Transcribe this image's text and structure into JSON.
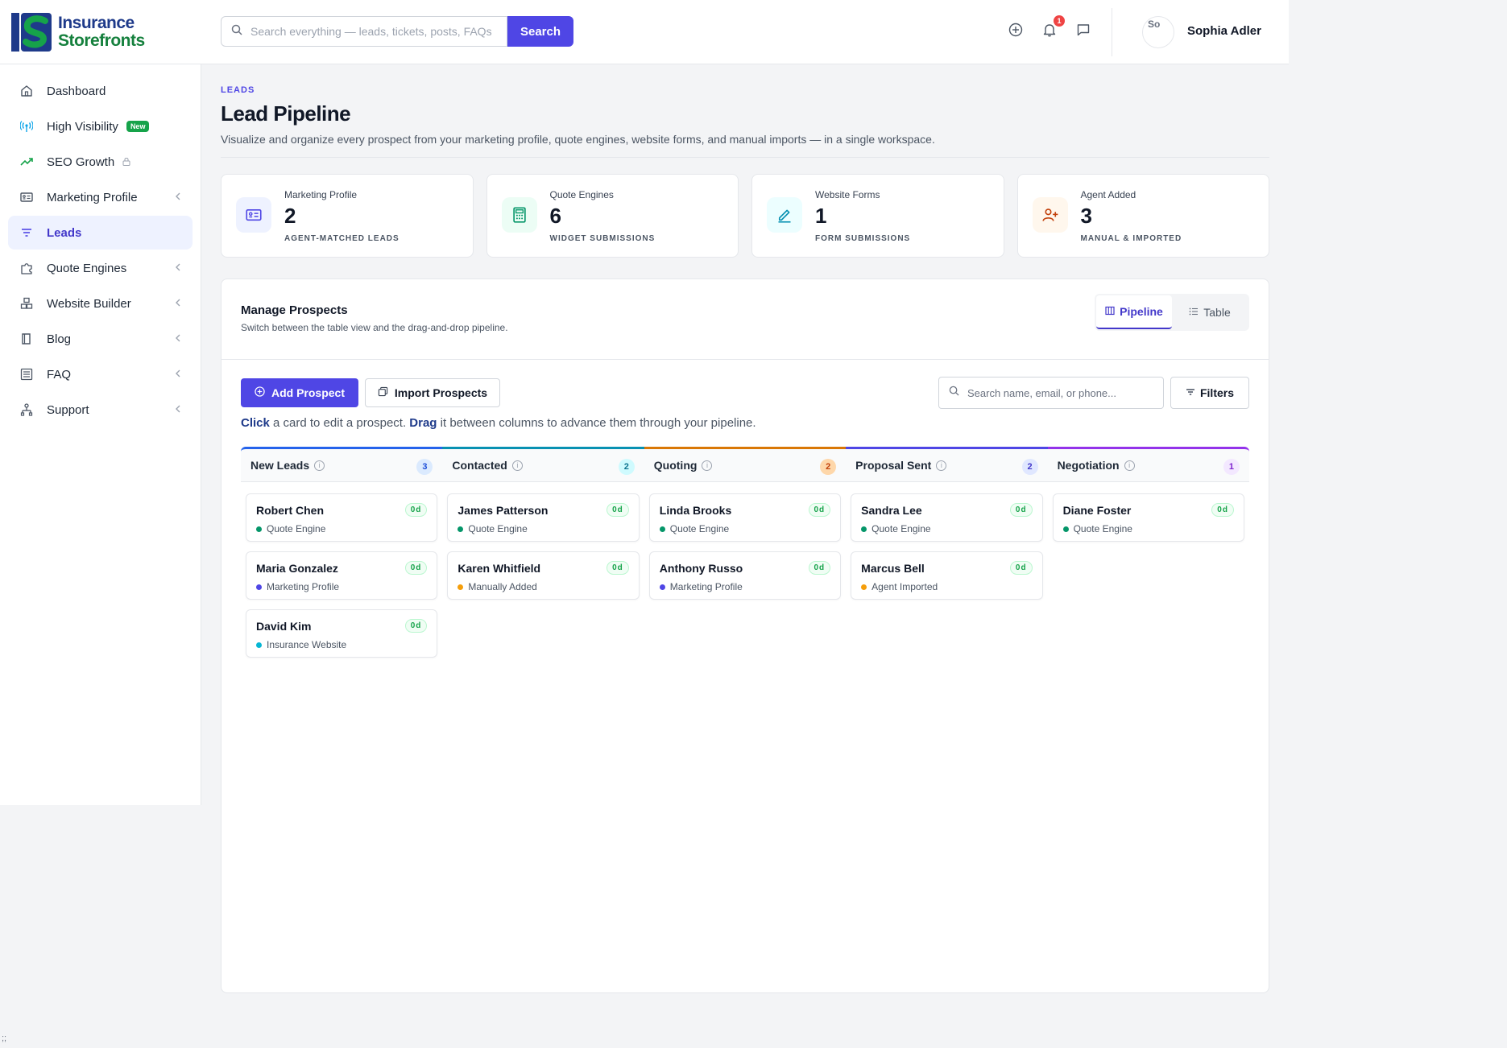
{
  "brand": {
    "line1": "Insurance",
    "line2": "Storefronts"
  },
  "header": {
    "search_placeholder": "Search everything — leads, tickets, posts, FAQs",
    "search_button": "Search",
    "notification_count": "1",
    "avatar_alt": "So",
    "user_name": "Sophia Adler",
    "icons": [
      "plus-circle-icon",
      "bell-icon",
      "chat-icon"
    ]
  },
  "sidebar": {
    "items": [
      {
        "label": "Dashboard",
        "icon": "home-icon"
      },
      {
        "label": "High Visibility",
        "icon": "broadcast-icon",
        "badge": "New"
      },
      {
        "label": "SEO Growth",
        "icon": "trending-up-icon",
        "locked": true
      },
      {
        "label": "Marketing Profile",
        "icon": "id-card-icon",
        "chevron": true
      },
      {
        "label": "Leads",
        "icon": "filter-icon",
        "active": true
      },
      {
        "label": "Quote Engines",
        "icon": "puzzle-icon",
        "chevron": true
      },
      {
        "label": "Website Builder",
        "icon": "cubes-icon",
        "chevron": true
      },
      {
        "label": "Blog",
        "icon": "book-icon",
        "chevron": true
      },
      {
        "label": "FAQ",
        "icon": "list-icon",
        "chevron": true
      },
      {
        "label": "Support",
        "icon": "sitemap-icon",
        "chevron": true
      }
    ]
  },
  "page": {
    "eyebrow": "LEADS",
    "title": "Lead Pipeline",
    "description": "Visualize and organize every prospect from your marketing profile, quote engines, website forms, and manual imports — in a single workspace."
  },
  "stats": [
    {
      "label": "Marketing Profile",
      "value": "2",
      "sub": "AGENT-MATCHED LEADS",
      "icon": "id-card-icon",
      "color": "#4f46e5",
      "bg": "#eef2ff"
    },
    {
      "label": "Quote Engines",
      "value": "6",
      "sub": "WIDGET SUBMISSIONS",
      "icon": "calculator-icon",
      "color": "#059669",
      "bg": "#ecfdf5"
    },
    {
      "label": "Website Forms",
      "value": "1",
      "sub": "FORM SUBMISSIONS",
      "icon": "pencil-icon",
      "color": "#0891b2",
      "bg": "#ecfeff"
    },
    {
      "label": "Agent Added",
      "value": "3",
      "sub": "MANUAL & IMPORTED",
      "icon": "user-plus-icon",
      "color": "#c2410c",
      "bg": "#fff7ed"
    }
  ],
  "panel": {
    "title": "Manage Prospects",
    "subtitle": "Switch between the table view and the drag-and-drop pipeline.",
    "view_pipeline": "Pipeline",
    "view_table": "Table",
    "add_button": "Add Prospect",
    "import_button": "Import Prospects",
    "search_placeholder": "Search name, email, or phone...",
    "filters_button": "Filters",
    "hint_click": "Click",
    "hint_mid": " a card to edit a prospect. ",
    "hint_drag": "Drag",
    "hint_end": " it between columns to advance them through your pipeline."
  },
  "columns": [
    {
      "title": "New Leads",
      "count": "3",
      "color": "#2563eb",
      "count_bg": "#dbeafe",
      "count_fg": "#1d4ed8",
      "cards": [
        {
          "name": "Robert Chen",
          "source": "Quote Engine",
          "dot": "#059669",
          "age": "0d"
        },
        {
          "name": "Maria Gonzalez",
          "source": "Marketing Profile",
          "dot": "#4f46e5",
          "age": "0d"
        },
        {
          "name": "David Kim",
          "source": "Insurance Website",
          "dot": "#06b6d4",
          "age": "0d"
        }
      ]
    },
    {
      "title": "Contacted",
      "count": "2",
      "color": "#0891b2",
      "count_bg": "#cffafe",
      "count_fg": "#0e7490",
      "cards": [
        {
          "name": "James Patterson",
          "source": "Quote Engine",
          "dot": "#059669",
          "age": "0d"
        },
        {
          "name": "Karen Whitfield",
          "source": "Manually Added",
          "dot": "#f59e0b",
          "age": "0d"
        }
      ]
    },
    {
      "title": "Quoting",
      "count": "2",
      "color": "#d97706",
      "count_bg": "#fed7aa",
      "count_fg": "#c2410c",
      "cards": [
        {
          "name": "Linda Brooks",
          "source": "Quote Engine",
          "dot": "#059669",
          "age": "0d"
        },
        {
          "name": "Anthony Russo",
          "source": "Marketing Profile",
          "dot": "#4f46e5",
          "age": "0d"
        }
      ]
    },
    {
      "title": "Proposal Sent",
      "count": "2",
      "color": "#4f46e5",
      "count_bg": "#e0e7ff",
      "count_fg": "#4338ca",
      "cards": [
        {
          "name": "Sandra Lee",
          "source": "Quote Engine",
          "dot": "#059669",
          "age": "0d"
        },
        {
          "name": "Marcus Bell",
          "source": "Agent Imported",
          "dot": "#f59e0b",
          "age": "0d"
        }
      ]
    },
    {
      "title": "Negotiation",
      "count": "1",
      "color": "#9333ea",
      "count_bg": "#f3e8ff",
      "count_fg": "#7e22ce",
      "cards": [
        {
          "name": "Diane Foster",
          "source": "Quote Engine",
          "dot": "#059669",
          "age": "0d"
        }
      ]
    }
  ],
  "corner_text": ";;"
}
